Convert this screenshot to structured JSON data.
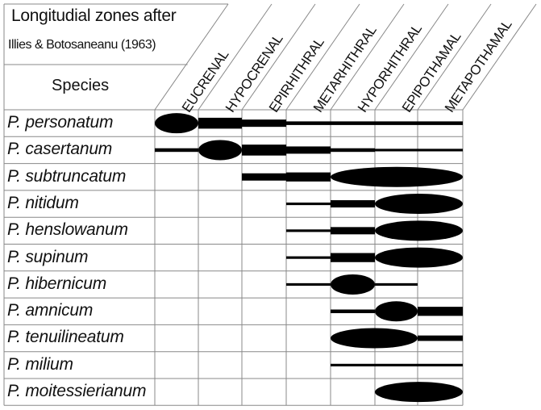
{
  "header": {
    "title_line1": "Longitudial zones after",
    "title_line2": "Illies & Botosaneanu (1963)",
    "species_label": "Species"
  },
  "zones": [
    "EUCRENAL",
    "HYPOCRENAL",
    "EPIRHITHRAL",
    "METARHITHRAL",
    "HYPORHITHRAL",
    "EPIPOTHAMAL",
    "METAPOTHAMAL"
  ],
  "species": [
    {
      "name": "P. personatum",
      "segments": [
        [
          1,
          3
        ],
        [
          2,
          2
        ],
        [
          3,
          1
        ],
        [
          4,
          1
        ],
        [
          5,
          1
        ],
        [
          6,
          1
        ]
      ],
      "peak": [
        0,
        0
      ]
    },
    {
      "name": "P. casertanum",
      "segments": [
        [
          0,
          1
        ],
        [
          2,
          3
        ],
        [
          3,
          2
        ],
        [
          4,
          1
        ],
        [
          5,
          0.7
        ],
        [
          6,
          0.7
        ]
      ],
      "peak": [
        1,
        1
      ]
    },
    {
      "name": "P. subtruncatum",
      "segments": [
        [
          2,
          2
        ],
        [
          3,
          2.5
        ]
      ],
      "peak": [
        4,
        6
      ]
    },
    {
      "name": "P. nitidum",
      "segments": [
        [
          3,
          0.7
        ],
        [
          4,
          2
        ]
      ],
      "peak": [
        5,
        6
      ]
    },
    {
      "name": "P. henslowanum",
      "segments": [
        [
          3,
          0.7
        ],
        [
          4,
          2
        ]
      ],
      "peak": [
        5,
        6
      ]
    },
    {
      "name": "P. supinum",
      "segments": [
        [
          3,
          0.7
        ],
        [
          4,
          2.5
        ]
      ],
      "peak": [
        5,
        6
      ]
    },
    {
      "name": "P. hibernicum",
      "segments": [
        [
          3,
          0.7
        ],
        [
          5,
          0.7
        ]
      ],
      "peak": [
        4,
        4
      ]
    },
    {
      "name": "P. amnicum",
      "segments": [
        [
          4,
          1
        ],
        [
          6,
          2.5
        ]
      ],
      "peak": [
        5,
        5
      ]
    },
    {
      "name": "P. tenuilineatum",
      "segments": [
        [
          6,
          1.5
        ]
      ],
      "peak": [
        4,
        5
      ]
    },
    {
      "name": "P. milium",
      "segments": [
        [
          4,
          0.7
        ],
        [
          5,
          0.7
        ],
        [
          6,
          0.7
        ]
      ],
      "peak": null
    },
    {
      "name": "P. moitessierianum",
      "segments": [],
      "peak": [
        5,
        6
      ]
    }
  ]
}
